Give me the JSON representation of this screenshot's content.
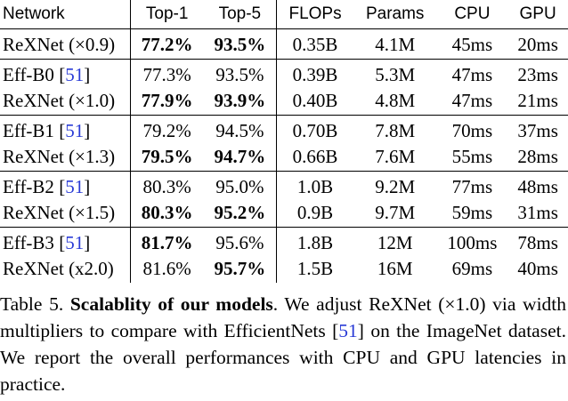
{
  "table": {
    "headers": [
      "Network",
      "Top-1",
      "Top-5",
      "FLOPs",
      "Params",
      "CPU",
      "GPU"
    ],
    "groups": [
      [
        {
          "network": "ReXNet (×0.9)",
          "ref": "",
          "top1": "77.2%",
          "top1_bold": true,
          "top5": "93.5%",
          "top5_bold": true,
          "flops": "0.35B",
          "params": "4.1M",
          "cpu": "45ms",
          "gpu": "20ms"
        }
      ],
      [
        {
          "network": "Eff-B0",
          "ref": "51",
          "top1": "77.3%",
          "top1_bold": false,
          "top5": "93.5%",
          "top5_bold": false,
          "flops": "0.39B",
          "params": "5.3M",
          "cpu": "47ms",
          "gpu": "23ms"
        },
        {
          "network": "ReXNet (×1.0)",
          "ref": "",
          "top1": "77.9%",
          "top1_bold": true,
          "top5": "93.9%",
          "top5_bold": true,
          "flops": "0.40B",
          "params": "4.8M",
          "cpu": "47ms",
          "gpu": "21ms"
        }
      ],
      [
        {
          "network": "Eff-B1",
          "ref": "51",
          "top1": "79.2%",
          "top1_bold": false,
          "top5": "94.5%",
          "top5_bold": false,
          "flops": "0.70B",
          "params": "7.8M",
          "cpu": "70ms",
          "gpu": "37ms"
        },
        {
          "network": "ReXNet (×1.3)",
          "ref": "",
          "top1": "79.5%",
          "top1_bold": true,
          "top5": "94.7%",
          "top5_bold": true,
          "flops": "0.66B",
          "params": "7.6M",
          "cpu": "55ms",
          "gpu": "28ms"
        }
      ],
      [
        {
          "network": "Eff-B2",
          "ref": "51",
          "top1": "80.3%",
          "top1_bold": false,
          "top5": "95.0%",
          "top5_bold": false,
          "flops": "1.0B",
          "params": "9.2M",
          "cpu": "77ms",
          "gpu": "48ms"
        },
        {
          "network": "ReXNet (×1.5)",
          "ref": "",
          "top1": "80.3%",
          "top1_bold": true,
          "top5": "95.2%",
          "top5_bold": true,
          "flops": "0.9B",
          "params": "9.7M",
          "cpu": "59ms",
          "gpu": "31ms"
        }
      ],
      [
        {
          "network": "Eff-B3",
          "ref": "51",
          "top1": "81.7%",
          "top1_bold": true,
          "top5": "95.6%",
          "top5_bold": false,
          "flops": "1.8B",
          "params": "12M",
          "cpu": "100ms",
          "gpu": "78ms"
        },
        {
          "network": "ReXNet (x2.0)",
          "ref": "",
          "top1": "81.6%",
          "top1_bold": false,
          "top5": "95.7%",
          "top5_bold": true,
          "flops": "1.5B",
          "params": "16M",
          "cpu": "69ms",
          "gpu": "40ms"
        }
      ]
    ]
  },
  "caption": {
    "label": "Table 5.",
    "title": "Scalablity of our models",
    "text_before_ref": ". We adjust ReXNet (×1.0) via width multipliers to compare with EfficientNets [",
    "ref": "51",
    "text_after_ref": "] on the ImageNet dataset. We report the overall performances with CPU and GPU latencies in practice."
  },
  "colors": {
    "text": "#000000",
    "citation_link": "#2a3cd6"
  }
}
